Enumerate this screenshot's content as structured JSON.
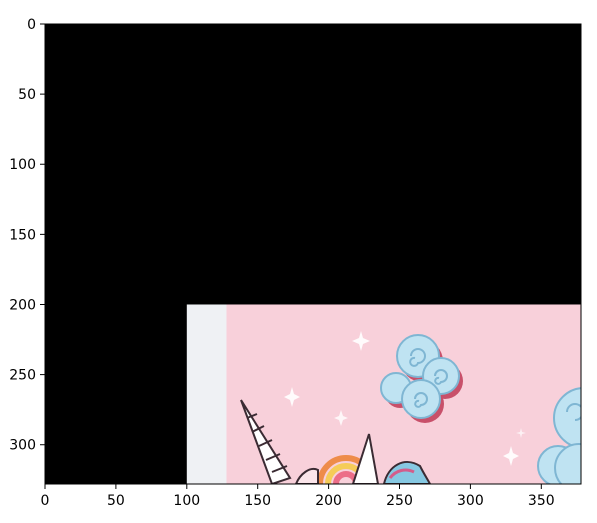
{
  "chart_data": {
    "type": "image",
    "title": "",
    "xlabel": "",
    "ylabel": "",
    "xlim": [
      0,
      378
    ],
    "ylim": [
      328,
      0
    ],
    "y_axis_inverted": true,
    "grid": false,
    "x_ticks": [
      "0",
      "50",
      "100",
      "150",
      "200",
      "250",
      "300",
      "350"
    ],
    "y_ticks": [
      "0",
      "50",
      "100",
      "150",
      "200",
      "250",
      "300"
    ],
    "x_tick_values": [
      0,
      50,
      100,
      150,
      200,
      250,
      300,
      350
    ],
    "y_tick_values": [
      0,
      50,
      100,
      150,
      200,
      250,
      300
    ],
    "regions": [
      {
        "name": "black-background",
        "x": [
          0,
          378
        ],
        "y": [
          0,
          328
        ],
        "color": "#000000"
      },
      {
        "name": "light-gray-strip",
        "x": [
          100,
          128
        ],
        "y": [
          200,
          328
        ],
        "color": "#eff1f4"
      },
      {
        "name": "pink-illustration",
        "x": [
          128,
          378
        ],
        "y": [
          200,
          328
        ],
        "color": "#f8d0da"
      }
    ],
    "illustration": "unicorn with rainbow, clouds and stars"
  }
}
